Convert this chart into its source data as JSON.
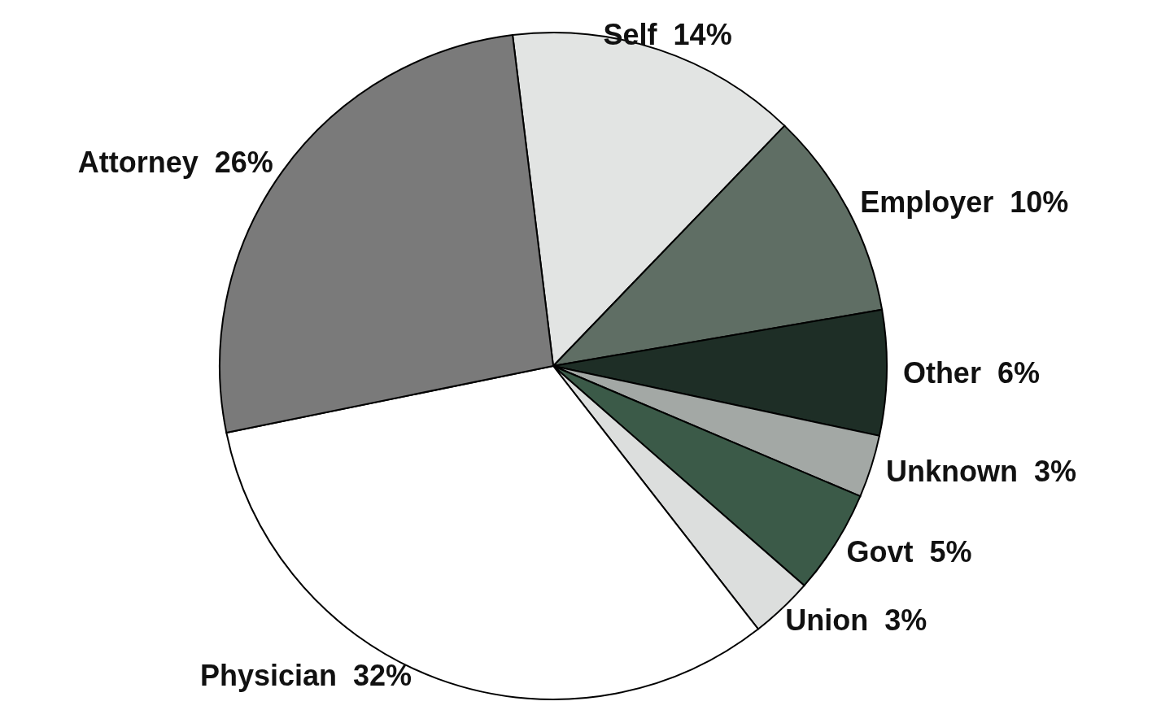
{
  "chart_data": {
    "type": "pie",
    "categories": [
      "Self",
      "Employer",
      "Other",
      "Unknown",
      "Govt",
      "Union",
      "Physician",
      "Attorney"
    ],
    "values": [
      14,
      10,
      6,
      3,
      5,
      3,
      32,
      26
    ],
    "value_labels": [
      "14%",
      "10%",
      "6%",
      "3%",
      "5%",
      "3%",
      "32%",
      "26%"
    ],
    "colors": [
      "#e2e4e3",
      "#5f6e64",
      "#1e2e26",
      "#a3a8a5",
      "#3b5a48",
      "#dcdedd",
      "#ffffff",
      "#7a7a7a"
    ],
    "legend": false
  }
}
